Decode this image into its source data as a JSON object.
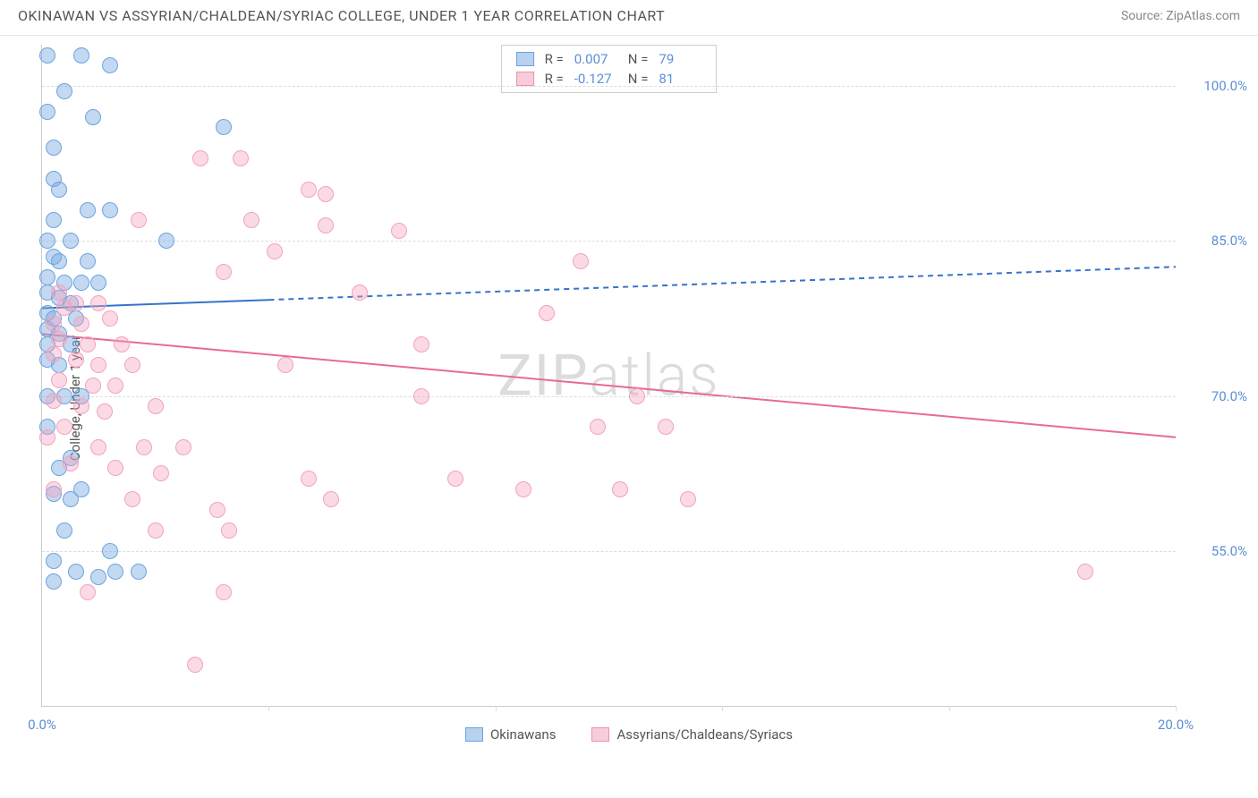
{
  "header": {
    "title": "OKINAWAN VS ASSYRIAN/CHALDEAN/SYRIAC COLLEGE, UNDER 1 YEAR CORRELATION CHART",
    "source": "Source: ZipAtlas.com"
  },
  "chart": {
    "type": "scatter",
    "ylabel": "College, Under 1 year",
    "xlim": [
      0,
      20
    ],
    "ylim": [
      40,
      104
    ],
    "x_ticks": [
      0,
      4,
      8,
      12,
      16,
      20
    ],
    "x_tick_labels": [
      "0.0%",
      "",
      "",
      "",
      "",
      "20.0%"
    ],
    "y_grid": [
      55,
      70,
      85,
      100
    ],
    "y_grid_labels": [
      "55.0%",
      "70.0%",
      "85.0%",
      "100.0%"
    ],
    "background_color": "#ffffff",
    "grid_color": "#e0e0e0",
    "axis_color": "#cccccc",
    "tick_label_color": "#5b8fd6",
    "marker_radius": 9,
    "watermark": {
      "text_pre": "ZIP",
      "text_post": "atlas",
      "color": "#dcdcdc"
    },
    "series": [
      {
        "name": "Okinawans",
        "legend_label": "Okinawans",
        "fill_color": "rgba(120,170,225,0.45)",
        "stroke_color": "#6ea3df",
        "swatch_fill": "#b8d1ef",
        "swatch_border": "#6ea3df",
        "r_label": "R =",
        "r_value": "0.007",
        "n_label": "N =",
        "n_value": "79",
        "trend": {
          "y_at_x0": 78.5,
          "y_at_x20": 82.5,
          "solid_until_x": 4.0,
          "color": "#3773c9",
          "width": 2
        },
        "points": [
          [
            0.1,
            103
          ],
          [
            0.7,
            103
          ],
          [
            1.2,
            102
          ],
          [
            0.4,
            99.5
          ],
          [
            0.1,
            97.5
          ],
          [
            0.9,
            97
          ],
          [
            0.2,
            94
          ],
          [
            3.2,
            96
          ],
          [
            0.2,
            91
          ],
          [
            0.3,
            90
          ],
          [
            0.2,
            87
          ],
          [
            0.8,
            88
          ],
          [
            0.1,
            85
          ],
          [
            0.5,
            85
          ],
          [
            0.2,
            83.5
          ],
          [
            0.3,
            83
          ],
          [
            0.8,
            83
          ],
          [
            0.1,
            81.5
          ],
          [
            0.4,
            81
          ],
          [
            0.7,
            81
          ],
          [
            0.1,
            80
          ],
          [
            0.3,
            79.5
          ],
          [
            0.5,
            79
          ],
          [
            0.1,
            78
          ],
          [
            0.2,
            77.5
          ],
          [
            0.6,
            77.5
          ],
          [
            0.1,
            76.5
          ],
          [
            0.3,
            76
          ],
          [
            0.1,
            75
          ],
          [
            0.5,
            75
          ],
          [
            0.1,
            73.5
          ],
          [
            0.3,
            73
          ],
          [
            0.1,
            70
          ],
          [
            0.4,
            70
          ],
          [
            0.7,
            70
          ],
          [
            0.1,
            67
          ],
          [
            1.2,
            88
          ],
          [
            1.0,
            81
          ],
          [
            2.2,
            85
          ],
          [
            0.3,
            63
          ],
          [
            0.2,
            60.5
          ],
          [
            0.5,
            64
          ],
          [
            0.4,
            57
          ],
          [
            0.2,
            54
          ],
          [
            0.6,
            53
          ],
          [
            1.3,
            53
          ],
          [
            1.7,
            53
          ],
          [
            1.0,
            52.5
          ],
          [
            0.2,
            52
          ],
          [
            1.2,
            55
          ],
          [
            0.5,
            60
          ],
          [
            0.7,
            61
          ]
        ]
      },
      {
        "name": "Assyrians/Chaldeans/Syriacs",
        "legend_label": "Assyrians/Chaldeans/Syriacs",
        "fill_color": "rgba(245,160,190,0.40)",
        "stroke_color": "#f0a4bd",
        "swatch_fill": "#f7cdd9",
        "swatch_border": "#ef8fb0",
        "r_label": "R =",
        "r_value": "-0.127",
        "n_label": "N =",
        "n_value": "81",
        "trend": {
          "y_at_x0": 76.0,
          "y_at_x20": 66.0,
          "solid_until_x": 20.0,
          "color": "#e76b97",
          "width": 2
        },
        "points": [
          [
            2.8,
            93
          ],
          [
            3.5,
            93
          ],
          [
            4.7,
            90
          ],
          [
            5.0,
            89.5
          ],
          [
            1.7,
            87
          ],
          [
            3.7,
            87
          ],
          [
            5.0,
            86.5
          ],
          [
            6.3,
            86
          ],
          [
            4.1,
            84
          ],
          [
            3.2,
            82
          ],
          [
            5.6,
            80
          ],
          [
            8.9,
            78
          ],
          [
            9.5,
            83
          ],
          [
            6.7,
            75
          ],
          [
            4.3,
            73
          ],
          [
            6.7,
            70
          ],
          [
            10.5,
            70
          ],
          [
            9.8,
            67
          ],
          [
            11.0,
            67
          ],
          [
            10.2,
            61
          ],
          [
            8.5,
            61
          ],
          [
            11.4,
            60
          ],
          [
            7.3,
            62
          ],
          [
            4.7,
            62
          ],
          [
            5.1,
            60
          ],
          [
            3.1,
            59
          ],
          [
            3.3,
            57
          ],
          [
            3.2,
            51
          ],
          [
            18.4,
            53
          ],
          [
            0.3,
            80
          ],
          [
            0.6,
            79
          ],
          [
            0.4,
            78.5
          ],
          [
            1.0,
            79
          ],
          [
            0.2,
            77
          ],
          [
            0.7,
            77
          ],
          [
            1.2,
            77.5
          ],
          [
            0.3,
            75.5
          ],
          [
            0.8,
            75
          ],
          [
            1.4,
            75
          ],
          [
            0.2,
            74
          ],
          [
            0.6,
            73.5
          ],
          [
            1.0,
            73
          ],
          [
            1.6,
            73
          ],
          [
            0.3,
            71.5
          ],
          [
            0.9,
            71
          ],
          [
            1.3,
            71
          ],
          [
            0.2,
            69.5
          ],
          [
            0.7,
            69
          ],
          [
            1.1,
            68.5
          ],
          [
            2.0,
            69
          ],
          [
            0.4,
            67
          ],
          [
            0.1,
            66
          ],
          [
            1.0,
            65
          ],
          [
            1.8,
            65
          ],
          [
            2.5,
            65
          ],
          [
            0.5,
            63.5
          ],
          [
            1.3,
            63
          ],
          [
            2.1,
            62.5
          ],
          [
            0.2,
            61
          ],
          [
            1.6,
            60
          ],
          [
            2.0,
            57
          ],
          [
            0.8,
            51
          ],
          [
            2.7,
            44
          ]
        ]
      }
    ],
    "bottom_legend": [
      {
        "swatch_fill": "#b8d1ef",
        "swatch_border": "#6ea3df",
        "label": "Okinawans"
      },
      {
        "swatch_fill": "#f7cdd9",
        "swatch_border": "#ef8fb0",
        "label": "Assyrians/Chaldeans/Syriacs"
      }
    ]
  }
}
